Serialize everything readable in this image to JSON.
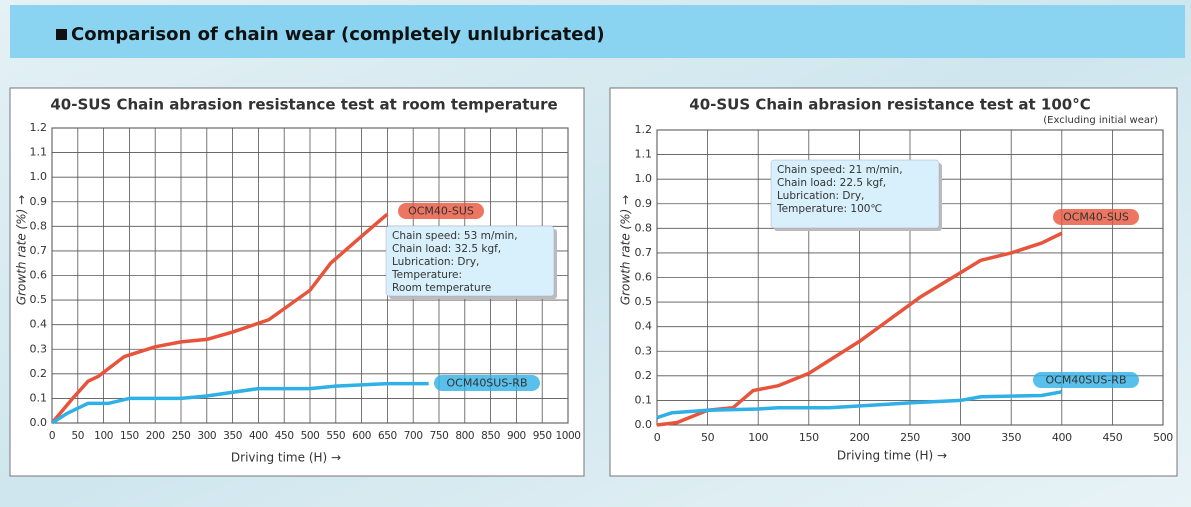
{
  "header": {
    "title": "Comparison of chain wear (completely unlubricated)"
  },
  "chart_data": [
    {
      "type": "line",
      "title": "40-SUS Chain abrasion resistance test at room temperature",
      "x_label": "Driving time (H) →",
      "y_label": "Growth rate (%) →",
      "annotation": [
        "Chain speed: 53 m/min,",
        "Chain load: 32.5 kgf,",
        "Lubrication: Dry,",
        "Temperature:",
        "Room temperature"
      ],
      "xlim": [
        0,
        1000
      ],
      "xticks": [
        0,
        50,
        100,
        150,
        200,
        250,
        300,
        350,
        400,
        450,
        500,
        550,
        600,
        650,
        700,
        750,
        800,
        850,
        900,
        950,
        1000
      ],
      "ylim": [
        0,
        1.2
      ],
      "yticks": [
        {
          "value": 0,
          "label": "0.0"
        },
        0.1,
        0.2,
        0.3,
        0.4,
        0.5,
        0.6,
        0.7,
        0.8,
        0.9,
        {
          "value": 1,
          "label": "1.0"
        },
        1.1,
        1.2
      ],
      "grid": true,
      "series": [
        {
          "name": "OCM40-SUS",
          "color": "#e8543b",
          "x": [
            0,
            40,
            70,
            90,
            140,
            200,
            250,
            300,
            350,
            420,
            500,
            540,
            600,
            650
          ],
          "values": [
            0,
            0.1,
            0.17,
            0.19,
            0.27,
            0.31,
            0.33,
            0.34,
            0.37,
            0.42,
            0.54,
            0.65,
            0.76,
            0.85
          ]
        },
        {
          "name": "OCM40SUS-RB",
          "color": "#2fb0e6",
          "x": [
            0,
            30,
            70,
            110,
            150,
            250,
            300,
            400,
            500,
            550,
            650,
            730
          ],
          "values": [
            0,
            0.04,
            0.08,
            0.08,
            0.1,
            0.1,
            0.11,
            0.14,
            0.14,
            0.15,
            0.16,
            0.16
          ]
        }
      ]
    },
    {
      "type": "line",
      "title": "40-SUS Chain abrasion resistance test at 100°C",
      "subtitle": "(Excluding initial wear)",
      "x_label": "Driving time (H) →",
      "y_label": "Growth rate (%) →",
      "annotation": [
        "Chain speed: 21 m/min,",
        "Chain load: 22.5 kgf,",
        "Lubrication: Dry,",
        "Temperature: 100℃"
      ],
      "xlim": [
        0,
        500
      ],
      "xticks": [
        0,
        50,
        100,
        150,
        200,
        250,
        300,
        350,
        400,
        450,
        500
      ],
      "ylim": [
        0,
        1.2
      ],
      "yticks": [
        {
          "value": 0,
          "label": "0.0"
        },
        0.1,
        0.2,
        0.3,
        0.4,
        0.5,
        0.6,
        0.7,
        0.8,
        0.9,
        {
          "value": 1,
          "label": "1.0"
        },
        1.1,
        1.2
      ],
      "grid": true,
      "series": [
        {
          "name": "OCM40-SUS",
          "color": "#e8543b",
          "x": [
            0,
            20,
            50,
            75,
            95,
            120,
            150,
            200,
            240,
            260,
            300,
            320,
            350,
            380,
            400
          ],
          "values": [
            0,
            0.01,
            0.06,
            0.07,
            0.14,
            0.16,
            0.21,
            0.34,
            0.46,
            0.52,
            0.62,
            0.67,
            0.7,
            0.74,
            0.78
          ]
        },
        {
          "name": "OCM40SUS-RB",
          "color": "#2fb0e6",
          "x": [
            0,
            15,
            50,
            100,
            120,
            170,
            250,
            300,
            320,
            380,
            400
          ],
          "values": [
            0.03,
            0.05,
            0.06,
            0.065,
            0.07,
            0.07,
            0.09,
            0.1,
            0.115,
            0.12,
            0.135
          ]
        }
      ]
    }
  ]
}
